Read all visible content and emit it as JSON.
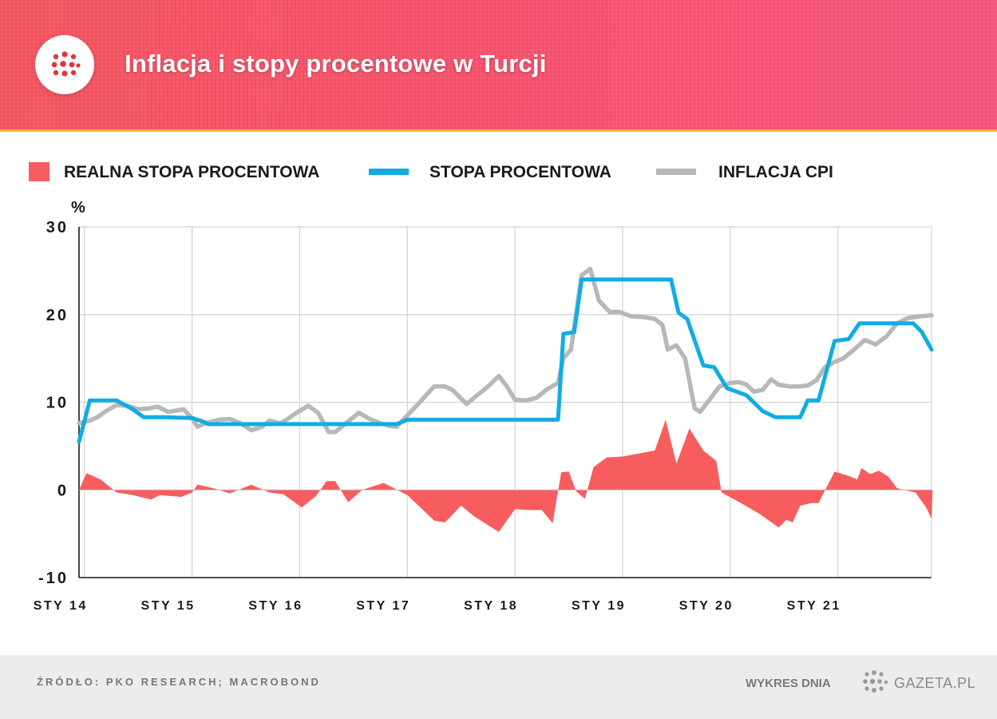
{
  "header": {
    "title": "Inflacja i stopy procentowe w Turcji"
  },
  "legend": {
    "real_rate": "REALNA STOPA PROCENTOWA",
    "policy_rate": "STOPA PROCENTOWA",
    "cpi": "INFLACJA CPI"
  },
  "footer": {
    "source": "ŹRÓDŁO: PKO RESEARCH; MACROBOND",
    "chart_of_day": "WYKRES DNIA",
    "brand": "GAZETA.PL"
  },
  "colors": {
    "header_bg": "#f4506a",
    "real_rate": "#f75d5f",
    "policy_rate": "#12ace2",
    "cpi": "#b8b8b8"
  },
  "chart_data": {
    "type": "line",
    "title": "Inflacja i stopy procentowe w Turcji",
    "ylabel": "%",
    "xlabel": "",
    "ylim": [
      -10,
      30
    ],
    "yticks": [
      "30",
      "20",
      "10",
      "0",
      "-10"
    ],
    "xlim": [
      2013.95,
      2021.87
    ],
    "xticks": [
      "STY 14",
      "STY 15",
      "STY 16",
      "STY 17",
      "STY 18",
      "STY 19",
      "STY 20",
      "STY 21"
    ],
    "grid": true,
    "legend_position": "top",
    "series": [
      {
        "name": "STOPA PROCENTOWA",
        "color": "#12ace2",
        "kind": "line",
        "points": [
          [
            2013.95,
            5.5
          ],
          [
            2014.05,
            10.2
          ],
          [
            2014.22,
            10.2
          ],
          [
            2014.3,
            10.2
          ],
          [
            2014.45,
            9.2
          ],
          [
            2014.55,
            8.3
          ],
          [
            2014.75,
            8.3
          ],
          [
            2015.0,
            8.2
          ],
          [
            2015.1,
            7.8
          ],
          [
            2015.15,
            7.5
          ],
          [
            2015.5,
            7.5
          ],
          [
            2016.0,
            7.5
          ],
          [
            2016.5,
            7.5
          ],
          [
            2016.9,
            7.5
          ],
          [
            2017.0,
            8.0
          ],
          [
            2017.5,
            8.0
          ],
          [
            2017.9,
            8.0
          ],
          [
            2018.4,
            8.0
          ],
          [
            2018.45,
            17.8
          ],
          [
            2018.55,
            18.0
          ],
          [
            2018.62,
            24.0
          ],
          [
            2019.0,
            24.0
          ],
          [
            2019.45,
            24.0
          ],
          [
            2019.52,
            20.2
          ],
          [
            2019.6,
            19.5
          ],
          [
            2019.75,
            14.2
          ],
          [
            2019.85,
            14.0
          ],
          [
            2019.97,
            11.6
          ],
          [
            2020.15,
            10.8
          ],
          [
            2020.3,
            9.0
          ],
          [
            2020.42,
            8.3
          ],
          [
            2020.65,
            8.3
          ],
          [
            2020.72,
            10.2
          ],
          [
            2020.82,
            10.2
          ],
          [
            2020.97,
            17.0
          ],
          [
            2021.1,
            17.2
          ],
          [
            2021.2,
            19.0
          ],
          [
            2021.5,
            19.0
          ],
          [
            2021.7,
            19.0
          ],
          [
            2021.78,
            18.0
          ],
          [
            2021.87,
            16.0
          ]
        ]
      },
      {
        "name": "INFLACJA CPI",
        "color": "#b8b8b8",
        "kind": "line",
        "points": [
          [
            2013.95,
            7.6
          ],
          [
            2014.05,
            7.9
          ],
          [
            2014.12,
            8.3
          ],
          [
            2014.2,
            9.0
          ],
          [
            2014.3,
            9.7
          ],
          [
            2014.4,
            9.6
          ],
          [
            2014.5,
            9.2
          ],
          [
            2014.6,
            9.3
          ],
          [
            2014.68,
            9.5
          ],
          [
            2014.78,
            8.9
          ],
          [
            2014.92,
            9.2
          ],
          [
            2015.0,
            8.2
          ],
          [
            2015.05,
            7.2
          ],
          [
            2015.12,
            7.6
          ],
          [
            2015.25,
            8.0
          ],
          [
            2015.35,
            8.1
          ],
          [
            2015.45,
            7.6
          ],
          [
            2015.55,
            6.8
          ],
          [
            2015.65,
            7.2
          ],
          [
            2015.72,
            7.9
          ],
          [
            2015.82,
            7.6
          ],
          [
            2015.9,
            8.2
          ],
          [
            2015.97,
            8.8
          ],
          [
            2016.08,
            9.6
          ],
          [
            2016.17,
            8.8
          ],
          [
            2016.27,
            6.6
          ],
          [
            2016.33,
            6.6
          ],
          [
            2016.45,
            7.8
          ],
          [
            2016.55,
            8.8
          ],
          [
            2016.65,
            8.1
          ],
          [
            2016.75,
            7.6
          ],
          [
            2016.83,
            7.3
          ],
          [
            2016.9,
            7.2
          ],
          [
            2017.0,
            8.5
          ],
          [
            2017.1,
            9.8
          ],
          [
            2017.25,
            11.8
          ],
          [
            2017.35,
            11.8
          ],
          [
            2017.42,
            11.4
          ],
          [
            2017.55,
            9.8
          ],
          [
            2017.65,
            10.8
          ],
          [
            2017.75,
            11.8
          ],
          [
            2017.85,
            13.0
          ],
          [
            2017.92,
            11.9
          ],
          [
            2018.0,
            10.3
          ],
          [
            2018.1,
            10.2
          ],
          [
            2018.2,
            10.5
          ],
          [
            2018.3,
            11.5
          ],
          [
            2018.4,
            12.2
          ],
          [
            2018.45,
            15.0
          ],
          [
            2018.52,
            16.0
          ],
          [
            2018.62,
            24.5
          ],
          [
            2018.7,
            25.2
          ],
          [
            2018.78,
            21.6
          ],
          [
            2018.88,
            20.3
          ],
          [
            2018.97,
            20.3
          ],
          [
            2019.08,
            19.8
          ],
          [
            2019.2,
            19.7
          ],
          [
            2019.3,
            19.5
          ],
          [
            2019.37,
            18.8
          ],
          [
            2019.42,
            16.0
          ],
          [
            2019.5,
            16.5
          ],
          [
            2019.58,
            15.0
          ],
          [
            2019.67,
            9.3
          ],
          [
            2019.72,
            8.9
          ],
          [
            2019.82,
            10.5
          ],
          [
            2019.9,
            11.8
          ],
          [
            2020.0,
            12.2
          ],
          [
            2020.08,
            12.3
          ],
          [
            2020.15,
            12.0
          ],
          [
            2020.22,
            11.2
          ],
          [
            2020.3,
            11.4
          ],
          [
            2020.38,
            12.6
          ],
          [
            2020.45,
            12.0
          ],
          [
            2020.55,
            11.8
          ],
          [
            2020.63,
            11.8
          ],
          [
            2020.72,
            11.9
          ],
          [
            2020.8,
            12.5
          ],
          [
            2020.88,
            14.0
          ],
          [
            2020.97,
            14.6
          ],
          [
            2021.05,
            15.0
          ],
          [
            2021.15,
            16.0
          ],
          [
            2021.25,
            17.1
          ],
          [
            2021.35,
            16.6
          ],
          [
            2021.45,
            17.5
          ],
          [
            2021.55,
            19.0
          ],
          [
            2021.65,
            19.6
          ],
          [
            2021.77,
            19.8
          ],
          [
            2021.87,
            19.9
          ]
        ]
      },
      {
        "name": "REALNA STOPA PROCENTOWA",
        "color": "#f75d5f",
        "kind": "area",
        "points": [
          [
            2013.95,
            0
          ],
          [
            2014.02,
            1.9
          ],
          [
            2014.15,
            1.2
          ],
          [
            2014.3,
            -0.3
          ],
          [
            2014.45,
            -0.6
          ],
          [
            2014.55,
            -0.9
          ],
          [
            2014.62,
            -1.1
          ],
          [
            2014.7,
            -0.6
          ],
          [
            2014.9,
            -0.8
          ],
          [
            2015.0,
            -0.3
          ],
          [
            2015.05,
            0.6
          ],
          [
            2015.2,
            0.2
          ],
          [
            2015.35,
            -0.4
          ],
          [
            2015.55,
            0.6
          ],
          [
            2015.72,
            -0.3
          ],
          [
            2015.85,
            -0.5
          ],
          [
            2016.02,
            -2.0
          ],
          [
            2016.15,
            -0.7
          ],
          [
            2016.25,
            1.0
          ],
          [
            2016.33,
            1.0
          ],
          [
            2016.45,
            -1.4
          ],
          [
            2016.58,
            0.0
          ],
          [
            2016.78,
            0.8
          ],
          [
            2017.0,
            -0.6
          ],
          [
            2017.25,
            -3.5
          ],
          [
            2017.35,
            -3.7
          ],
          [
            2017.5,
            -1.8
          ],
          [
            2017.62,
            -3.0
          ],
          [
            2017.85,
            -4.8
          ],
          [
            2018.0,
            -2.2
          ],
          [
            2018.15,
            -2.3
          ],
          [
            2018.25,
            -2.3
          ],
          [
            2018.35,
            -3.8
          ],
          [
            2018.43,
            2.0
          ],
          [
            2018.5,
            2.1
          ],
          [
            2018.57,
            -0.2
          ],
          [
            2018.65,
            -1.0
          ],
          [
            2018.73,
            2.6
          ],
          [
            2018.85,
            3.7
          ],
          [
            2019.0,
            3.8
          ],
          [
            2019.3,
            4.5
          ],
          [
            2019.4,
            8.0
          ],
          [
            2019.5,
            3.0
          ],
          [
            2019.62,
            7.0
          ],
          [
            2019.75,
            4.5
          ],
          [
            2019.87,
            3.3
          ],
          [
            2019.92,
            -0.3
          ],
          [
            2020.1,
            -1.5
          ],
          [
            2020.28,
            -2.8
          ],
          [
            2020.45,
            -4.3
          ],
          [
            2020.52,
            -3.4
          ],
          [
            2020.58,
            -3.7
          ],
          [
            2020.65,
            -1.8
          ],
          [
            2020.75,
            -1.5
          ],
          [
            2020.82,
            -1.5
          ],
          [
            2020.97,
            2.1
          ],
          [
            2021.1,
            1.6
          ],
          [
            2021.18,
            1.2
          ],
          [
            2021.22,
            2.5
          ],
          [
            2021.3,
            1.8
          ],
          [
            2021.38,
            2.2
          ],
          [
            2021.47,
            1.5
          ],
          [
            2021.55,
            0.2
          ],
          [
            2021.72,
            -0.3
          ],
          [
            2021.82,
            -2.0
          ],
          [
            2021.87,
            -3.3
          ],
          [
            2021.88,
            0
          ]
        ]
      }
    ]
  }
}
